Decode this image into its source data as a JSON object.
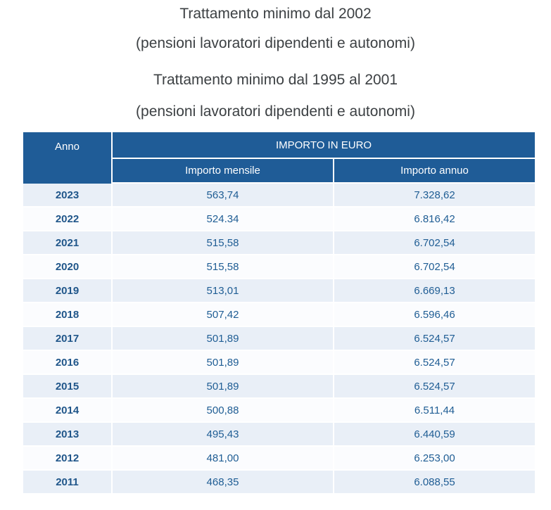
{
  "header": {
    "title_2002": "Trattamento minimo dal 2002",
    "subtitle_2002": "(pensioni lavoratori dipendenti e autonomi)",
    "title_1995": "Trattamento minimo dal 1995 al 2001",
    "subtitle_1995": "(pensioni lavoratori dipendenti e autonomi)"
  },
  "table": {
    "columns": {
      "anno": "Anno",
      "group": "IMPORTO IN EURO",
      "mensile": "Importo mensile",
      "annuo": "Importo annuo"
    },
    "rows": [
      {
        "anno": "2023",
        "mensile": "563,74",
        "annuo": "7.328,62"
      },
      {
        "anno": "2022",
        "mensile": "524.34",
        "annuo": "6.816,42"
      },
      {
        "anno": "2021",
        "mensile": "515,58",
        "annuo": "6.702,54"
      },
      {
        "anno": "2020",
        "mensile": "515,58",
        "annuo": "6.702,54"
      },
      {
        "anno": "2019",
        "mensile": "513,01",
        "annuo": "6.669,13"
      },
      {
        "anno": "2018",
        "mensile": "507,42",
        "annuo": "6.596,46"
      },
      {
        "anno": "2017",
        "mensile": "501,89",
        "annuo": "6.524,57"
      },
      {
        "anno": "2016",
        "mensile": "501,89",
        "annuo": "6.524,57"
      },
      {
        "anno": "2015",
        "mensile": "501,89",
        "annuo": "6.524,57"
      },
      {
        "anno": "2014",
        "mensile": "500,88",
        "annuo": "6.511,44"
      },
      {
        "anno": "2013",
        "mensile": "495,43",
        "annuo": "6.440,59"
      },
      {
        "anno": "2012",
        "mensile": "481,00",
        "annuo": "6.253,00"
      },
      {
        "anno": "2011",
        "mensile": "468,35",
        "annuo": "6.088,55"
      }
    ]
  },
  "chart_data": {
    "type": "table",
    "title": "Trattamento minimo dal 2002 (pensioni lavoratori dipendenti e autonomi)",
    "columns": [
      "Anno",
      "Importo mensile",
      "Importo annuo"
    ],
    "rows": [
      [
        "2023",
        "563,74",
        "7.328,62"
      ],
      [
        "2022",
        "524.34",
        "6.816,42"
      ],
      [
        "2021",
        "515,58",
        "6.702,54"
      ],
      [
        "2020",
        "515,58",
        "6.702,54"
      ],
      [
        "2019",
        "513,01",
        "6.669,13"
      ],
      [
        "2018",
        "507,42",
        "6.596,46"
      ],
      [
        "2017",
        "501,89",
        "6.524,57"
      ],
      [
        "2016",
        "501,89",
        "6.524,57"
      ],
      [
        "2015",
        "501,89",
        "6.524,57"
      ],
      [
        "2014",
        "500,88",
        "6.511,44"
      ],
      [
        "2013",
        "495,43",
        "6.440,59"
      ],
      [
        "2012",
        "481,00",
        "6.253,00"
      ],
      [
        "2011",
        "468,35",
        "6.088,55"
      ]
    ]
  },
  "colors": {
    "header_bg": "#1f5c97",
    "row_odd_bg": "#e9eff7",
    "row_even_bg": "#fbfcfe",
    "year_text": "#20568a",
    "value_text": "#1f5d94",
    "title_text": "#3c4043",
    "header_text": "#ffffff"
  }
}
